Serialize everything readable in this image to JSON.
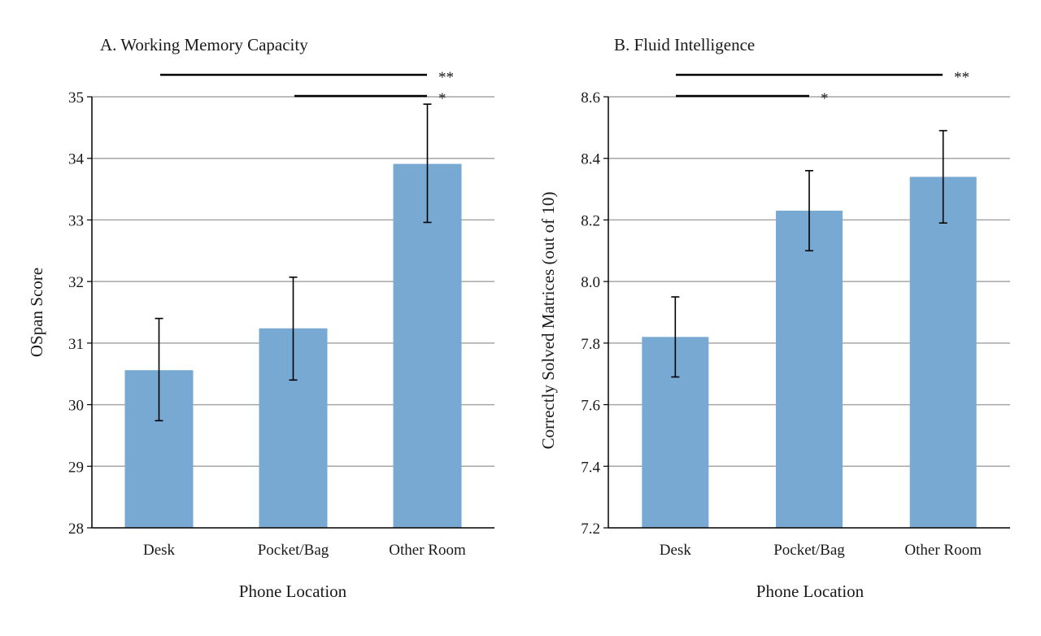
{
  "colors": {
    "bar": "#77A9D3",
    "grid": "#A6A6A6",
    "axis": "#000000",
    "text": "#1a1a1a"
  },
  "chart_data": [
    {
      "type": "bar",
      "title": "A. Working Memory Capacity",
      "xlabel": "Phone Location",
      "ylabel": "OSpan Score",
      "categories": [
        "Desk",
        "Pocket/Bag",
        "Other Room"
      ],
      "values": [
        30.56,
        31.24,
        33.91
      ],
      "error_low": [
        29.74,
        30.4,
        32.96
      ],
      "error_high": [
        31.4,
        32.07,
        34.88
      ],
      "ylim": [
        28,
        35
      ],
      "yticks": [
        28,
        29,
        30,
        31,
        32,
        33,
        34,
        35
      ],
      "ytick_labels": [
        "28",
        "29",
        "30",
        "31",
        "32",
        "33",
        "34",
        "35"
      ],
      "grid": true,
      "significance": [
        {
          "from": 0,
          "to": 2,
          "label": "**"
        },
        {
          "from": 1,
          "to": 2,
          "label": "*"
        }
      ]
    },
    {
      "type": "bar",
      "title": "B. Fluid Intelligence",
      "xlabel": "Phone Location",
      "ylabel": "Correctly Solved Matrices (out of 10)",
      "categories": [
        "Desk",
        "Pocket/Bag",
        "Other Room"
      ],
      "values": [
        7.82,
        8.23,
        8.34
      ],
      "error_low": [
        7.69,
        8.1,
        8.19
      ],
      "error_high": [
        7.95,
        8.36,
        8.49
      ],
      "ylim": [
        7.2,
        8.6
      ],
      "yticks": [
        7.2,
        7.4,
        7.6,
        7.8,
        8.0,
        8.2,
        8.4,
        8.6
      ],
      "ytick_labels": [
        "7.2",
        "7.4",
        "7.6",
        "7.8",
        "8.0",
        "8.2",
        "8.4",
        "8.6"
      ],
      "grid": true,
      "significance": [
        {
          "from": 0,
          "to": 2,
          "label": "**"
        },
        {
          "from": 0,
          "to": 1,
          "label": "*"
        }
      ]
    }
  ]
}
